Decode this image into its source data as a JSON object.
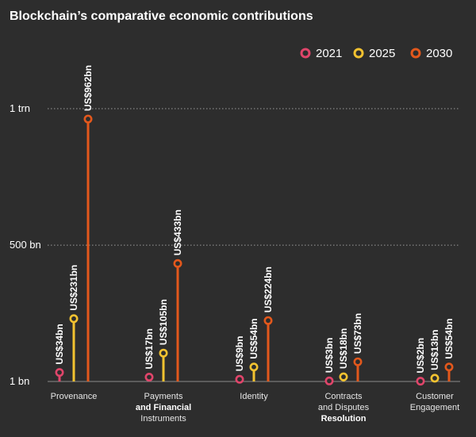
{
  "chart_data": {
    "type": "lollipop",
    "title": "Blockchain’s comparative economic contributions",
    "xlabel": "",
    "ylabel": "",
    "y_tick_labels": [
      "1 bn",
      "500 bn",
      "1 trn"
    ],
    "y_tick_values": [
      1,
      500,
      1000
    ],
    "ylim": [
      1,
      1000
    ],
    "grid": "dotted horizontal lines at 500 bn and 1 trn",
    "legend_position": "top-right",
    "categories": [
      [
        "Provenance"
      ],
      [
        "Payments",
        "and Financial",
        "Instruments"
      ],
      [
        "Identity"
      ],
      [
        "Contracts",
        "and Disputes",
        "Resolution"
      ],
      [
        "Customer",
        "Engagement"
      ]
    ],
    "series": [
      {
        "name": "2021",
        "color": "#e0456a",
        "values": [
          34,
          17,
          9,
          3,
          2
        ],
        "labels": [
          "US$34bn",
          "US$17bn",
          "US$9bn",
          "US$3bn",
          "US$2bn"
        ]
      },
      {
        "name": "2025",
        "color": "#f2c230",
        "values": [
          231,
          105,
          54,
          18,
          13
        ],
        "labels": [
          "US$231bn",
          "US$105bn",
          "US$54bn",
          "US$18bn",
          "US$13bn"
        ]
      },
      {
        "name": "2030",
        "color": "#e3581c",
        "values": [
          962,
          433,
          224,
          73,
          54
        ],
        "labels": [
          "US$962bn",
          "US$433bn",
          "US$224bn",
          "US$73bn",
          "US$54bn"
        ]
      }
    ]
  }
}
